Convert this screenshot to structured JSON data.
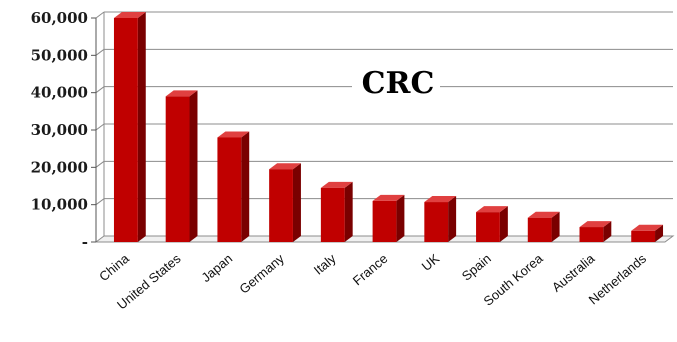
{
  "chart_data": {
    "type": "bar",
    "title": "CRC",
    "categories": [
      "China",
      "United States",
      "Japan",
      "Germany",
      "Italy",
      "France",
      "UK",
      "Spain",
      "South Korea",
      "Australia",
      "Netherlands"
    ],
    "values": [
      60000,
      39000,
      28000,
      19500,
      14500,
      11000,
      10700,
      8000,
      6500,
      4000,
      3000
    ],
    "y_tick_labels": [
      "-",
      "10,000",
      "20,000",
      "30,000",
      "40,000",
      "50,000",
      "60,000"
    ],
    "ylim": [
      0,
      60000
    ],
    "grid": true,
    "colors": {
      "bar_front": "#c00000",
      "bar_side": "#7a0000",
      "bar_top": "#e04040",
      "grid": "#8c8c8c"
    }
  }
}
